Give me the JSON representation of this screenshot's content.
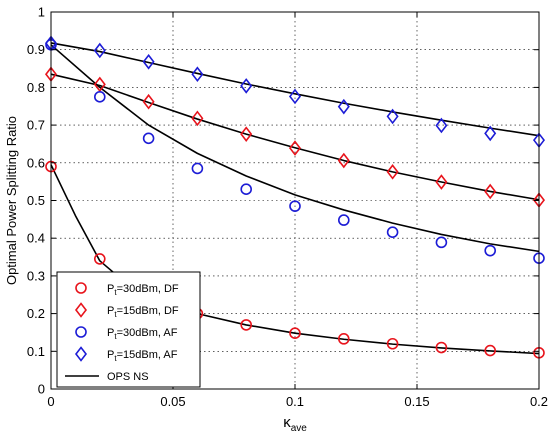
{
  "chart_data": {
    "type": "line",
    "title": "",
    "xlabel": "κ",
    "xlabel_subscript": "ave",
    "ylabel": "Optimal Power Splitting Ratio",
    "xlim": [
      0,
      0.2
    ],
    "ylim": [
      0,
      1
    ],
    "x_ticks": [
      "0",
      "0.05",
      "0.1",
      "0.15",
      "0.2"
    ],
    "y_ticks": [
      "0",
      "0.1",
      "0.2",
      "0.3",
      "0.4",
      "0.5",
      "0.6",
      "0.7",
      "0.8",
      "0.9",
      "1"
    ],
    "grid": true,
    "legend_position": "bottom-left",
    "x": [
      0,
      0.02,
      0.04,
      0.06,
      0.08,
      0.1,
      0.12,
      0.14,
      0.16,
      0.18,
      0.2
    ],
    "series": [
      {
        "name_main": "P",
        "name_sub": "t",
        "name_rest": "=30dBm, DF",
        "marker": "circle",
        "color": "#e8141c",
        "values": [
          0.59,
          0.345,
          0.255,
          0.2,
          0.17,
          0.148,
          0.133,
          0.12,
          0.11,
          0.102,
          0.096
        ]
      },
      {
        "name_main": "P",
        "name_sub": "t",
        "name_rest": "=15dBm, DF",
        "marker": "diamond",
        "color": "#e8141c",
        "values": [
          0.835,
          0.808,
          0.762,
          0.718,
          0.676,
          0.639,
          0.606,
          0.576,
          0.549,
          0.524,
          0.501
        ]
      },
      {
        "name_main": "P",
        "name_sub": "t",
        "name_rest": "=30dBm, AF",
        "marker": "circle",
        "color": "#1c1cd6",
        "values": [
          0.913,
          0.775,
          0.665,
          0.585,
          0.53,
          0.485,
          0.448,
          0.416,
          0.389,
          0.367,
          0.347
        ]
      },
      {
        "name_main": "P",
        "name_sub": "t",
        "name_rest": "=15dBm, AF",
        "marker": "diamond",
        "color": "#1c1cd6",
        "values": [
          0.917,
          0.898,
          0.868,
          0.835,
          0.804,
          0.776,
          0.749,
          0.723,
          0.699,
          0.678,
          0.66
        ]
      }
    ],
    "curves": [
      {
        "name": "OPS NS",
        "color": "#000000",
        "x": [
          0,
          0.01,
          0.02,
          0.03,
          0.04,
          0.05,
          0.06,
          0.08,
          0.1,
          0.12,
          0.14,
          0.16,
          0.18,
          0.2
        ],
        "values": [
          0.595,
          0.46,
          0.34,
          0.285,
          0.25,
          0.222,
          0.2,
          0.17,
          0.148,
          0.132,
          0.119,
          0.109,
          0.101,
          0.094
        ]
      },
      {
        "name": "",
        "color": "#000000",
        "x": [
          0,
          0.02,
          0.04,
          0.06,
          0.08,
          0.1,
          0.12,
          0.14,
          0.16,
          0.18,
          0.2
        ],
        "values": [
          0.835,
          0.805,
          0.76,
          0.716,
          0.676,
          0.64,
          0.606,
          0.576,
          0.549,
          0.524,
          0.502
        ]
      },
      {
        "name": "",
        "color": "#000000",
        "x": [
          0,
          0.02,
          0.04,
          0.06,
          0.08,
          0.1,
          0.12,
          0.14,
          0.16,
          0.18,
          0.2
        ],
        "values": [
          0.913,
          0.8,
          0.7,
          0.625,
          0.565,
          0.515,
          0.475,
          0.44,
          0.41,
          0.385,
          0.365
        ]
      },
      {
        "name": "",
        "color": "#000000",
        "x": [
          0,
          0.02,
          0.04,
          0.06,
          0.08,
          0.1,
          0.12,
          0.14,
          0.16,
          0.18,
          0.2
        ],
        "values": [
          0.918,
          0.895,
          0.866,
          0.837,
          0.809,
          0.783,
          0.758,
          0.735,
          0.713,
          0.692,
          0.672
        ]
      }
    ]
  }
}
